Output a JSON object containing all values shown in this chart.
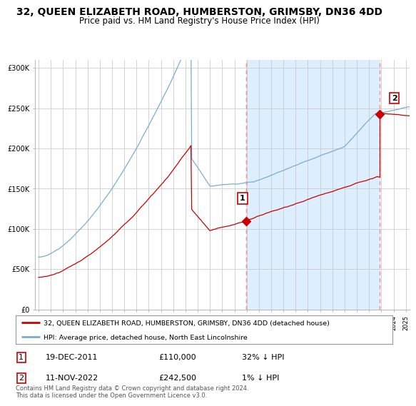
{
  "title": "32, QUEEN ELIZABETH ROAD, HUMBERSTON, GRIMSBY, DN36 4DD",
  "subtitle": "Price paid vs. HM Land Registry's House Price Index (HPI)",
  "ylabel_ticks": [
    "£0",
    "£50K",
    "£100K",
    "£150K",
    "£200K",
    "£250K",
    "£300K"
  ],
  "ytick_values": [
    0,
    50000,
    100000,
    150000,
    200000,
    250000,
    300000
  ],
  "ylim": [
    0,
    310000
  ],
  "xlim_start": 1994.7,
  "xlim_end": 2025.3,
  "red_line_color": "#cc0000",
  "blue_line_color": "#7aadd4",
  "sale1_year": 2011.97,
  "sale1_price": 110000,
  "sale2_year": 2022.87,
  "sale2_price": 242500,
  "dashed_vline_color": "#ff8888",
  "shade_color": "#ddeeff",
  "legend_label_red": "32, QUEEN ELIZABETH ROAD, HUMBERSTON, GRIMSBY, DN36 4DD (detached house)",
  "legend_label_blue": "HPI: Average price, detached house, North East Lincolnshire",
  "table_row1": [
    "1",
    "19-DEC-2011",
    "£110,000",
    "32% ↓ HPI"
  ],
  "table_row2": [
    "2",
    "11-NOV-2022",
    "£242,500",
    "1% ↓ HPI"
  ],
  "footnote": "Contains HM Land Registry data © Crown copyright and database right 2024.\nThis data is licensed under the Open Government Licence v3.0.",
  "bg_color": "#ffffff",
  "grid_color": "#cccccc",
  "title_fontsize": 10,
  "subtitle_fontsize": 8.5,
  "tick_fontsize": 7
}
